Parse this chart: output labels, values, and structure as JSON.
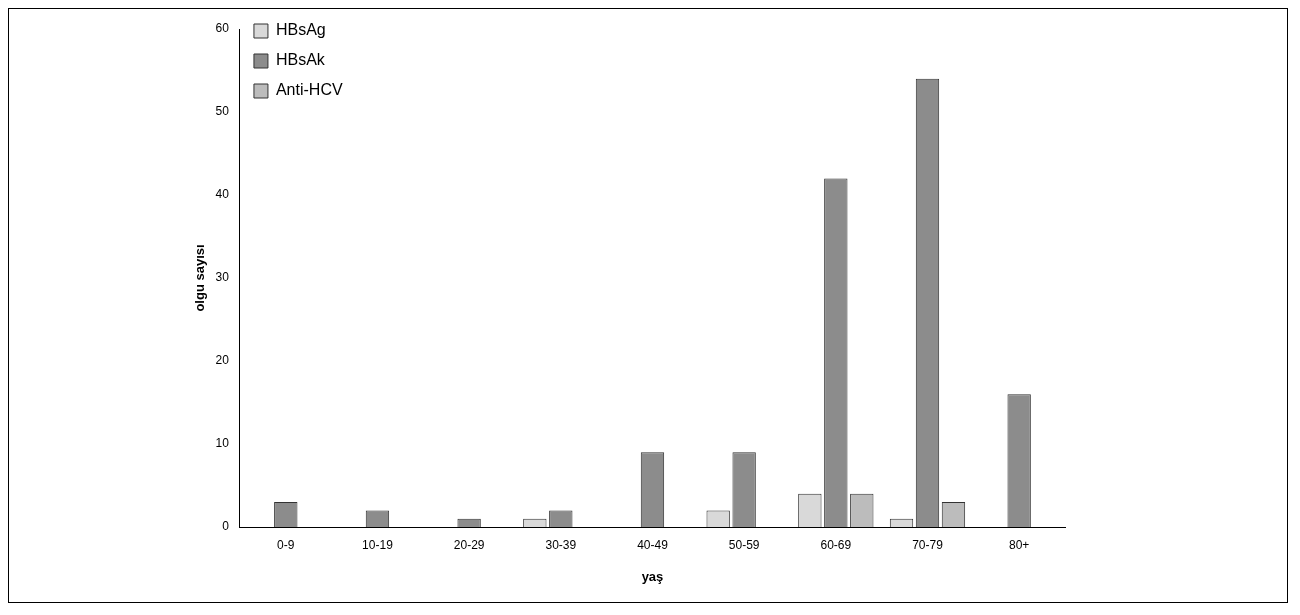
{
  "chart_data": {
    "type": "bar",
    "xlabel": "yaş",
    "ylabel": "olgu sayısı",
    "categories": [
      "0-9",
      "10-19",
      "20-29",
      "30-39",
      "40-49",
      "50-59",
      "60-69",
      "70-79",
      "80+"
    ],
    "series": [
      {
        "name": "HBsAg",
        "color": "#d9d9d9",
        "values": [
          0,
          0,
          0,
          1,
          0,
          2,
          4,
          1,
          0
        ]
      },
      {
        "name": "HBsAk",
        "color": "#8c8c8c",
        "values": [
          3,
          2,
          1,
          2,
          9,
          9,
          42,
          54,
          16
        ]
      },
      {
        "name": "Anti-HCV",
        "color": "#bcbcbc",
        "values": [
          0,
          0,
          0,
          0,
          0,
          0,
          4,
          3,
          0
        ]
      }
    ],
    "ylim": [
      0,
      60
    ],
    "yticks": [
      0,
      10,
      20,
      30,
      40,
      50,
      60
    ],
    "grid": false,
    "legend": "top left"
  }
}
